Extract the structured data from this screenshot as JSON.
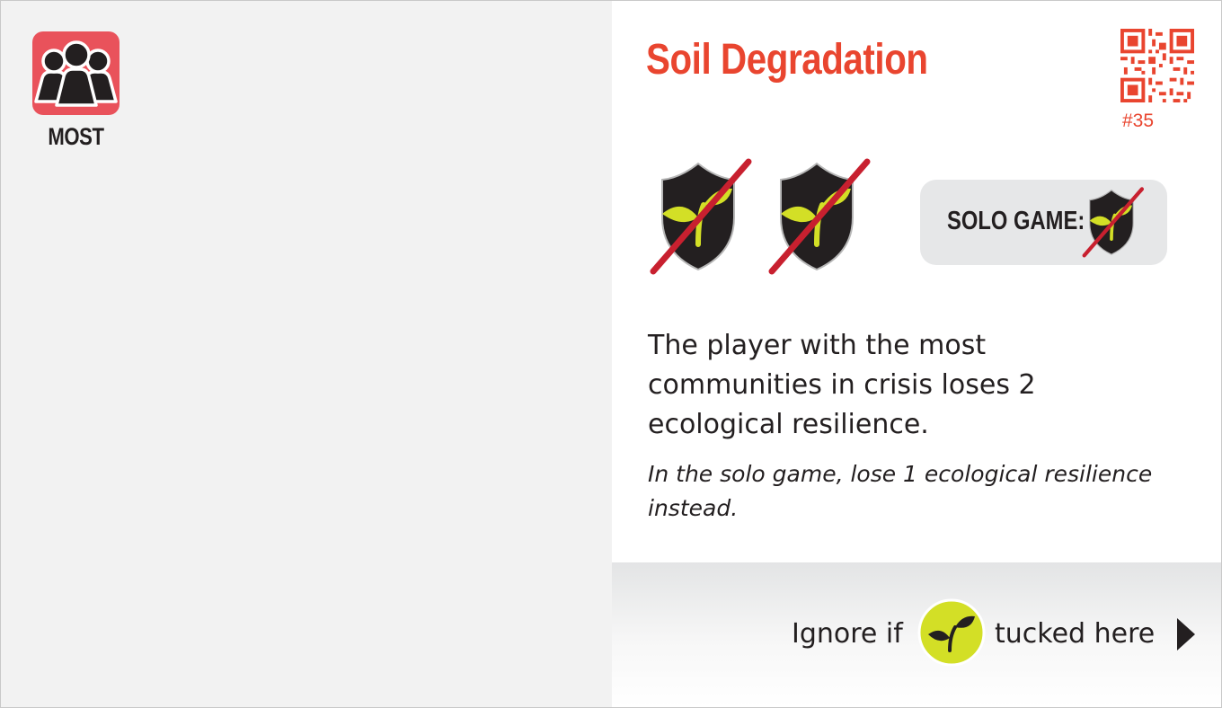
{
  "card": {
    "condition_icon": "people-group-icon",
    "condition_label": "MOST",
    "title": "Soil Degradation",
    "card_number": "#35",
    "penalty_icons": [
      "crossed-sprout-shield-icon",
      "crossed-sprout-shield-icon"
    ],
    "solo": {
      "label": "SOLO GAME:",
      "icon": "crossed-sprout-shield-icon"
    },
    "effect_text": "The player with the most communities in crisis loses 2 ecological resilience.",
    "solo_text": "In the solo game, lose 1 ecological resilience instead.",
    "footer": {
      "prefix": "Ignore if",
      "icon": "sprout-circle-icon",
      "suffix": "tucked here",
      "arrow_icon": "play-arrow-icon"
    }
  },
  "colors": {
    "title_red": "#e9452f",
    "badge_red": "#e9525b",
    "sprout_green": "#d3df26",
    "cross_red": "#c8202f",
    "shield_black": "#231f20",
    "left_panel_bg": "#f2f2f2",
    "solo_box_bg": "#e6e7e8"
  }
}
